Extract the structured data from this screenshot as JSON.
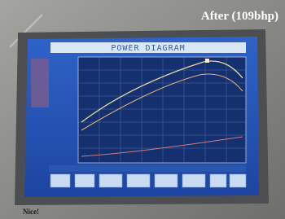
{
  "caption": "After (109bhp)",
  "screen": {
    "title": "POWER DIAGRAM"
  },
  "footer": "Nice!"
}
